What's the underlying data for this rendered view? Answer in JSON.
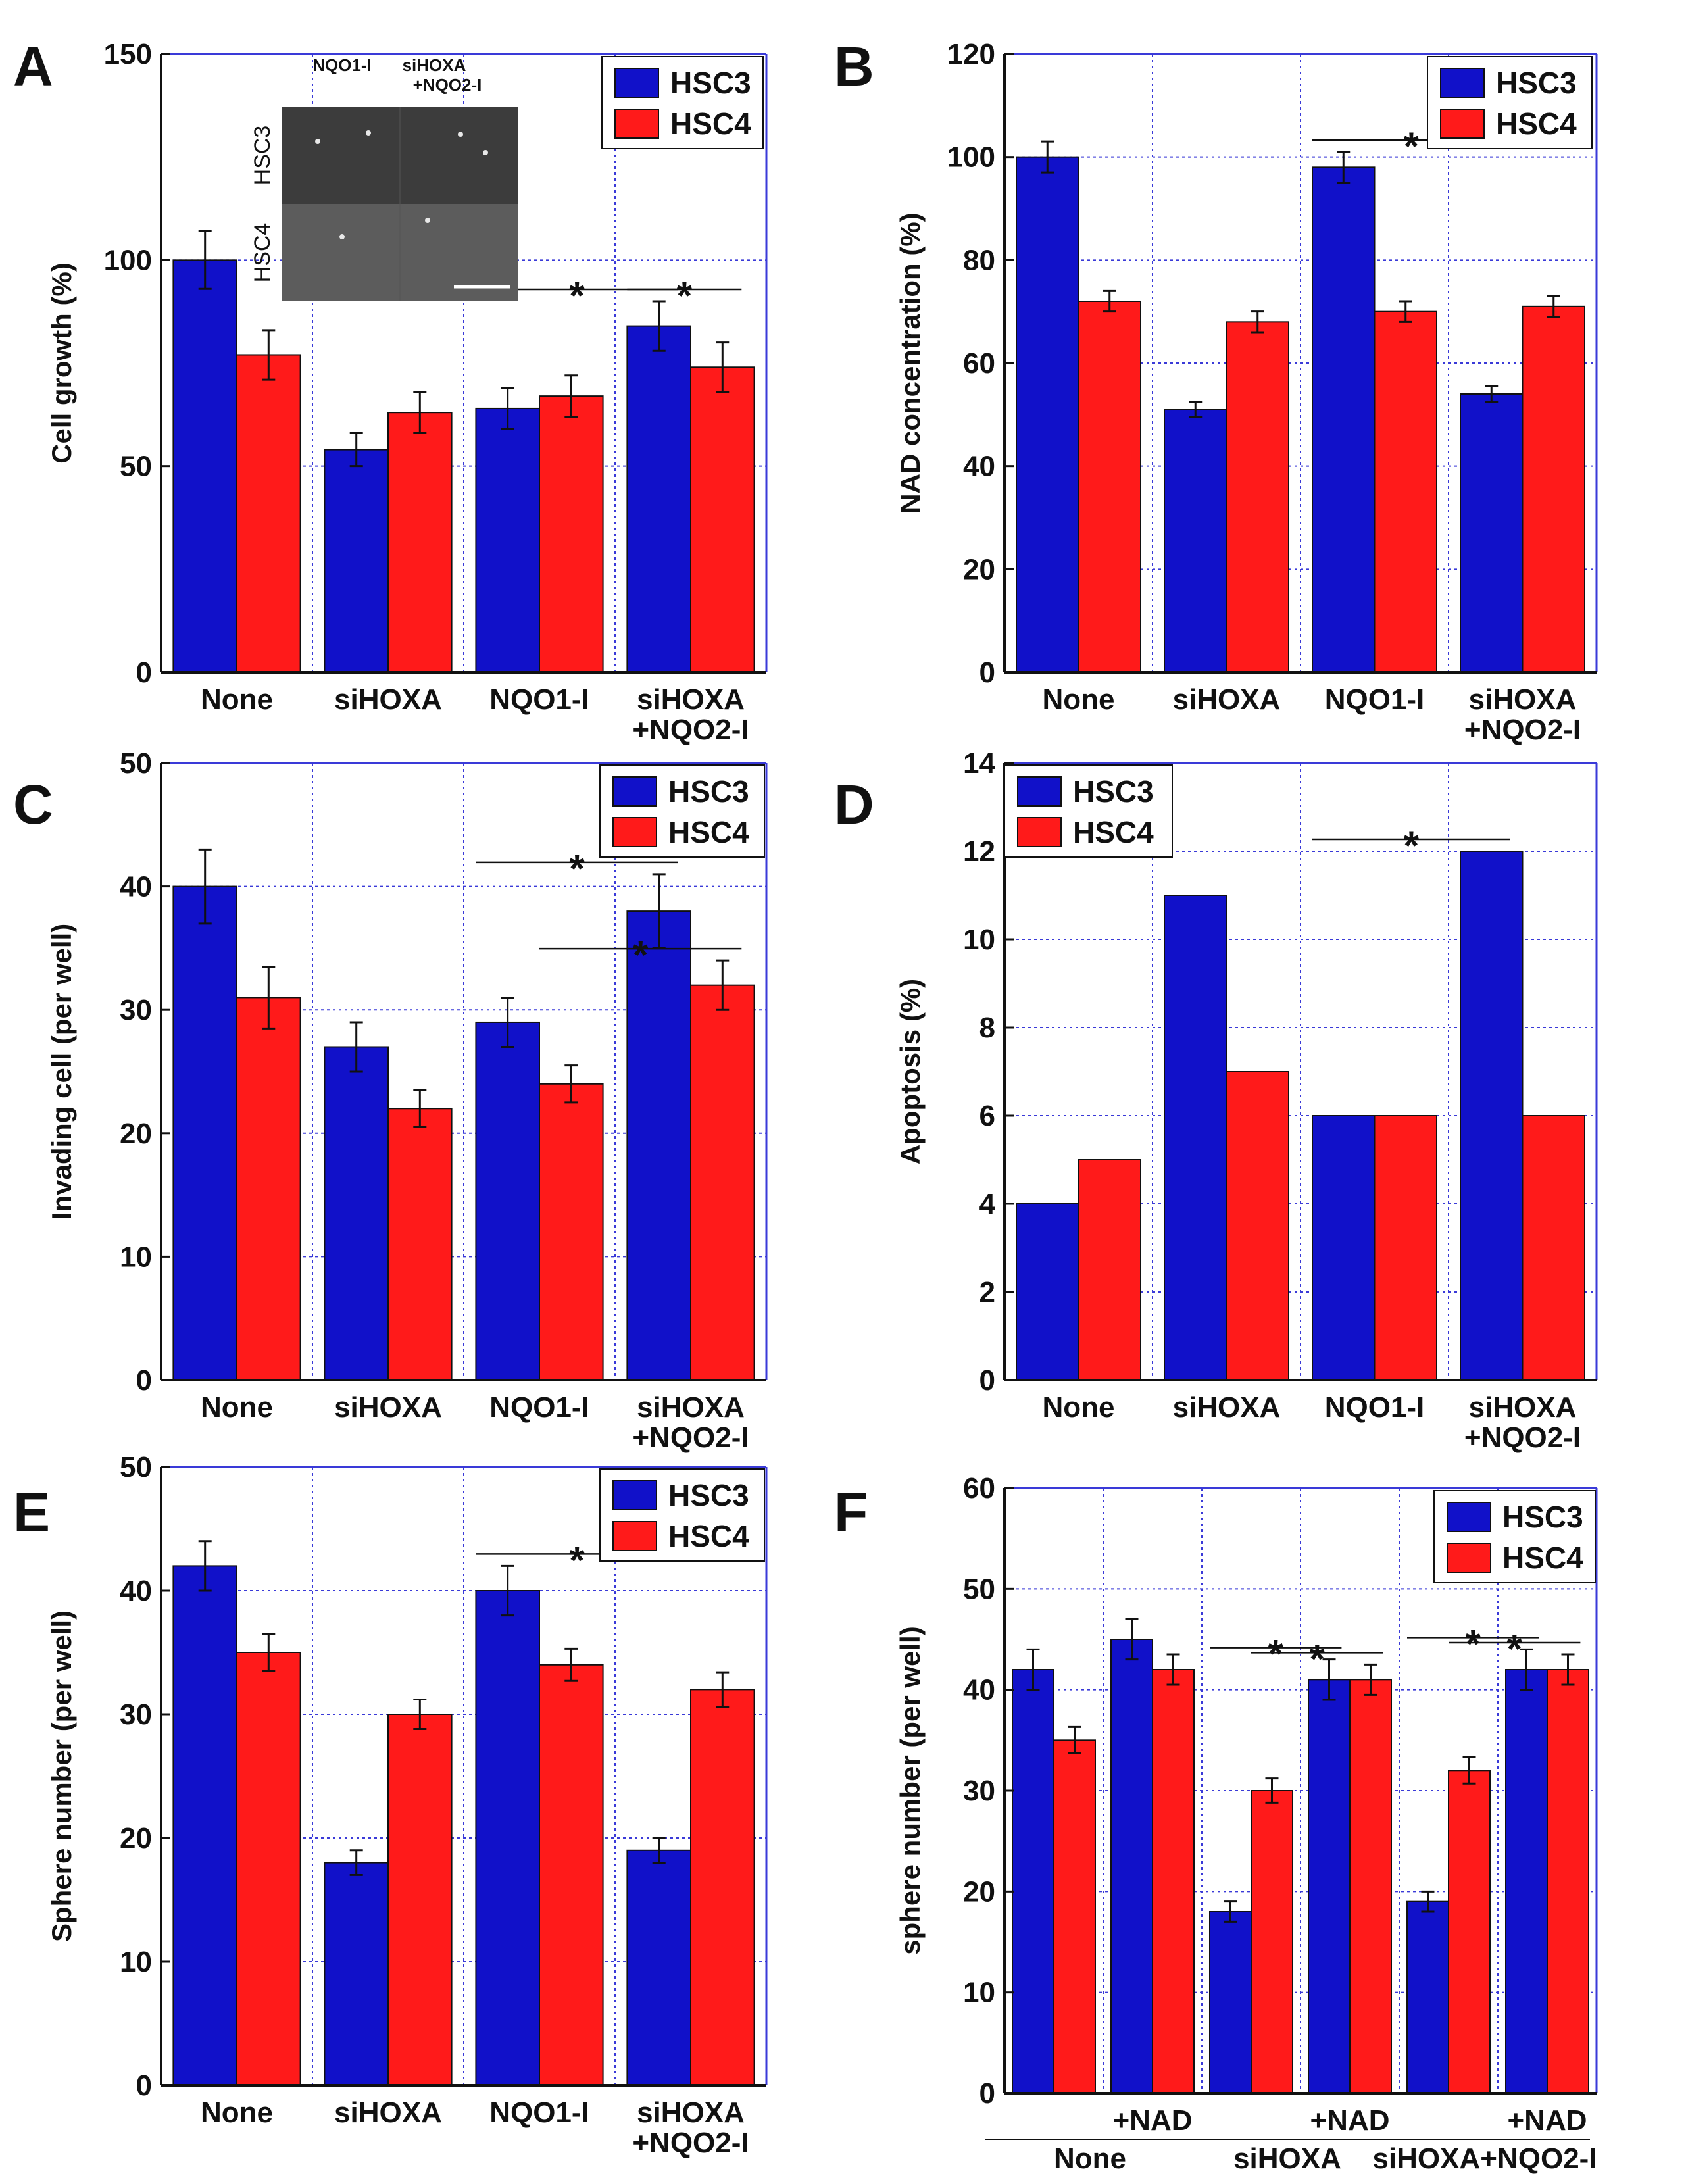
{
  "figure": {
    "series_colors": {
      "HSC3": "#1111c9",
      "HSC4": "#ff1a1a"
    },
    "grid_color": "#3a3ad8",
    "inset": {
      "col_labels": [
        "NQO1-I",
        "siHOXA",
        "+NQO2-I"
      ],
      "row_labels": [
        "HSC3",
        "HSC4"
      ]
    }
  },
  "chart_data": [
    {
      "panel": "A",
      "type": "bar",
      "ylabel": "Cell growth (%)",
      "ylim": [
        0,
        150
      ],
      "yticks": [
        0,
        50,
        100,
        150
      ],
      "categories": [
        [
          "None"
        ],
        [
          "siHOXA"
        ],
        [
          "NQO1-I"
        ],
        [
          "siHOXA",
          "+NQO2-I"
        ]
      ],
      "series": [
        {
          "name": "HSC3",
          "values": [
            100,
            54,
            64,
            84
          ],
          "errors": [
            7,
            4,
            5,
            6
          ]
        },
        {
          "name": "HSC4",
          "values": [
            77,
            63,
            67,
            74
          ],
          "errors": [
            6,
            5,
            5,
            6
          ]
        }
      ],
      "legend": "top-right",
      "significance": [
        {
          "from": [
            2,
            0
          ],
          "to": [
            3,
            0
          ],
          "label": "*"
        },
        {
          "from": [
            3,
            0
          ],
          "to": [
            3,
            1
          ],
          "label": "*"
        }
      ]
    },
    {
      "panel": "B",
      "type": "bar",
      "ylabel": "NAD concentration (%)",
      "ylim": [
        0,
        120
      ],
      "yticks": [
        0,
        20,
        40,
        60,
        80,
        100,
        120
      ],
      "categories": [
        [
          "None"
        ],
        [
          "siHOXA"
        ],
        [
          "NQO1-I"
        ],
        [
          "siHOXA",
          "+NQO2-I"
        ]
      ],
      "series": [
        {
          "name": "HSC3",
          "values": [
            100,
            51,
            98,
            54
          ],
          "errors": [
            3,
            1.5,
            3,
            1.5
          ]
        },
        {
          "name": "HSC4",
          "values": [
            72,
            68,
            70,
            71
          ],
          "errors": [
            2,
            2,
            2,
            2
          ]
        }
      ],
      "legend": "top-right",
      "significance": [
        {
          "from": [
            2,
            0
          ],
          "to": [
            3,
            0
          ],
          "label": "*"
        }
      ]
    },
    {
      "panel": "C",
      "type": "bar",
      "ylabel": "Invading cell (per well)",
      "ylim": [
        0,
        50
      ],
      "yticks": [
        0,
        10,
        20,
        30,
        40,
        50
      ],
      "categories": [
        [
          "None"
        ],
        [
          "siHOXA"
        ],
        [
          "NQO1-I"
        ],
        [
          "siHOXA",
          "+NQO2-I"
        ]
      ],
      "series": [
        {
          "name": "HSC3",
          "values": [
            40,
            27,
            29,
            38
          ],
          "errors": [
            3,
            2,
            2,
            3
          ]
        },
        {
          "name": "HSC4",
          "values": [
            31,
            22,
            24,
            32
          ],
          "errors": [
            2.5,
            1.5,
            1.5,
            2
          ]
        }
      ],
      "legend": "top-right",
      "significance": [
        {
          "from": [
            2,
            0
          ],
          "to": [
            3,
            0
          ],
          "label": "*"
        },
        {
          "from": [
            2,
            1
          ],
          "to": [
            3,
            1
          ],
          "label": "*"
        }
      ]
    },
    {
      "panel": "D",
      "type": "bar",
      "ylabel": "Apoptosis (%)",
      "ylim": [
        0,
        14
      ],
      "yticks": [
        0,
        2,
        4,
        6,
        8,
        10,
        12,
        14
      ],
      "categories": [
        [
          "None"
        ],
        [
          "siHOXA"
        ],
        [
          "NQO1-I"
        ],
        [
          "siHOXA",
          "+NQO2-I"
        ]
      ],
      "series": [
        {
          "name": "HSC3",
          "values": [
            4,
            11,
            6,
            12
          ],
          "errors": [
            0,
            0,
            0,
            0
          ]
        },
        {
          "name": "HSC4",
          "values": [
            5,
            7,
            6,
            6
          ],
          "errors": [
            0,
            0,
            0,
            0
          ]
        }
      ],
      "legend": "top-left",
      "significance": [
        {
          "from": [
            2,
            0
          ],
          "to": [
            3,
            0
          ],
          "label": "*"
        }
      ]
    },
    {
      "panel": "E",
      "type": "bar",
      "ylabel": "Sphere number (per well)",
      "ylim": [
        0,
        50
      ],
      "yticks": [
        0,
        10,
        20,
        30,
        40,
        50
      ],
      "categories": [
        [
          "None"
        ],
        [
          "siHOXA"
        ],
        [
          "NQO1-I"
        ],
        [
          "siHOXA",
          "+NQO2-I"
        ]
      ],
      "series": [
        {
          "name": "HSC3",
          "values": [
            42,
            18,
            40,
            19
          ],
          "errors": [
            2,
            1,
            2,
            1
          ]
        },
        {
          "name": "HSC4",
          "values": [
            35,
            30,
            34,
            32
          ],
          "errors": [
            1.5,
            1.2,
            1.3,
            1.4
          ]
        }
      ],
      "legend": "top-right",
      "significance": [
        {
          "from": [
            2,
            0
          ],
          "to": [
            3,
            0
          ],
          "label": "*"
        }
      ]
    },
    {
      "panel": "F",
      "type": "bar",
      "ylabel": "sphere number (per well)",
      "ylim": [
        0,
        60
      ],
      "yticks": [
        0,
        10,
        20,
        30,
        40,
        50,
        60
      ],
      "categories": [
        [
          ""
        ],
        [
          "+NAD"
        ],
        [
          ""
        ],
        [
          "+NAD"
        ],
        [
          ""
        ],
        [
          "+NAD"
        ]
      ],
      "groups": [
        "None",
        "siHOXA",
        "siHOXA+NQO2-I"
      ],
      "series": [
        {
          "name": "HSC3",
          "values": [
            42,
            45,
            18,
            41,
            19,
            42
          ],
          "errors": [
            2,
            2,
            1,
            2,
            1,
            2
          ]
        },
        {
          "name": "HSC4",
          "values": [
            35,
            42,
            30,
            41,
            32,
            42
          ],
          "errors": [
            1.3,
            1.5,
            1.2,
            1.5,
            1.3,
            1.5
          ]
        }
      ],
      "legend": "top-right",
      "significance": [
        {
          "from": [
            2,
            0
          ],
          "to": [
            3,
            0
          ],
          "label": "*"
        },
        {
          "from": [
            2,
            1
          ],
          "to": [
            3,
            1
          ],
          "label": "*"
        },
        {
          "from": [
            4,
            0
          ],
          "to": [
            5,
            0
          ],
          "label": "*"
        },
        {
          "from": [
            4,
            1
          ],
          "to": [
            5,
            1
          ],
          "label": "*"
        }
      ]
    }
  ]
}
